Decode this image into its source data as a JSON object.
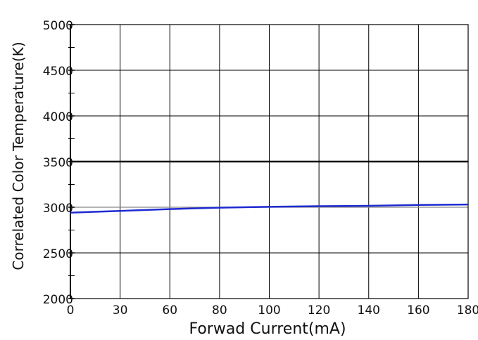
{
  "chart_data": {
    "type": "line",
    "title": "",
    "xlabel": "Forwad Current(mA)",
    "ylabel": "Correlated Color Temperature(K)",
    "x_tick_labels": [
      "0",
      "30",
      "60",
      "80",
      "100",
      "120",
      "140",
      "160",
      "180"
    ],
    "y_ticks": [
      2000,
      2500,
      3000,
      3500,
      4000,
      4500,
      5000
    ],
    "ylim": [
      2000,
      5000
    ],
    "xlim": [
      0,
      180
    ],
    "grid": true,
    "series": [
      {
        "name": "",
        "color": "#1e2ad0",
        "x": [
          0,
          30,
          60,
          80,
          100,
          120,
          140,
          160,
          180
        ],
        "y": [
          2940,
          2960,
          2980,
          2995,
          3005,
          3012,
          3015,
          3025,
          3030
        ]
      }
    ],
    "reference_lines": [
      {
        "y": 3500,
        "color": "#000000"
      },
      {
        "y": 3000,
        "color": "#888888"
      }
    ]
  }
}
